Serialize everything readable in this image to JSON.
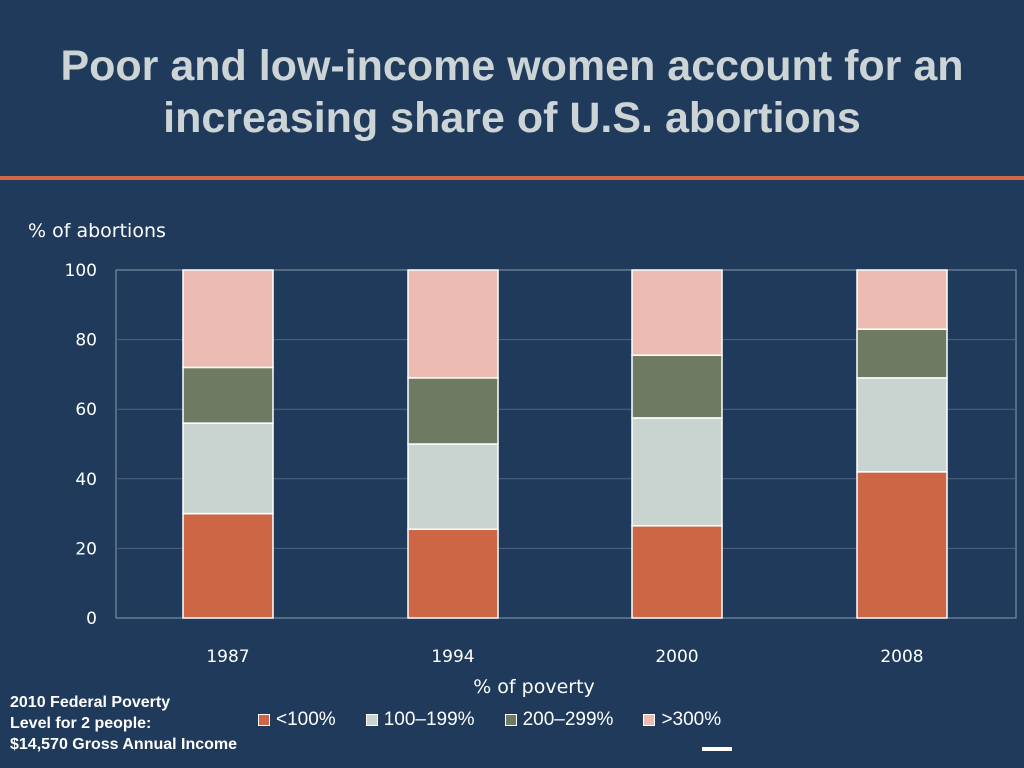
{
  "slide": {
    "title_line1": "Poor and low-income women account for an",
    "title_line2": "increasing share of U.S. abortions",
    "footnote_line1": "2010 Federal Poverty",
    "footnote_line2": "Level for 2 people:",
    "footnote_line3": "$14,570 Gross Annual Income"
  },
  "colors": {
    "background": "#1f3a5a",
    "accent_rule": "#d06848",
    "title": "#cdd4d6"
  },
  "chart_data": {
    "type": "bar",
    "stacked": true,
    "categories": [
      "1987",
      "1994",
      "2000",
      "2008"
    ],
    "series": [
      {
        "name": "<100%",
        "color": "#cc6644",
        "values": [
          30,
          25.5,
          26.5,
          42
        ]
      },
      {
        "name": "100–199%",
        "color": "#c9d3cf",
        "values": [
          26,
          24.5,
          31,
          27
        ]
      },
      {
        "name": "200–299%",
        "color": "#6f7a62",
        "values": [
          16,
          19,
          18,
          14
        ]
      },
      {
        "name": ">300%",
        "color": "#ecbbb2",
        "values": [
          28,
          31,
          24.5,
          17
        ]
      }
    ],
    "ylim": [
      0,
      100
    ],
    "yticks": [
      "0",
      "20",
      "40",
      "60",
      "80",
      "100"
    ],
    "ylabel": "% of abortions",
    "xlabel": "% of poverty",
    "grid": true,
    "legend": "bottom"
  }
}
